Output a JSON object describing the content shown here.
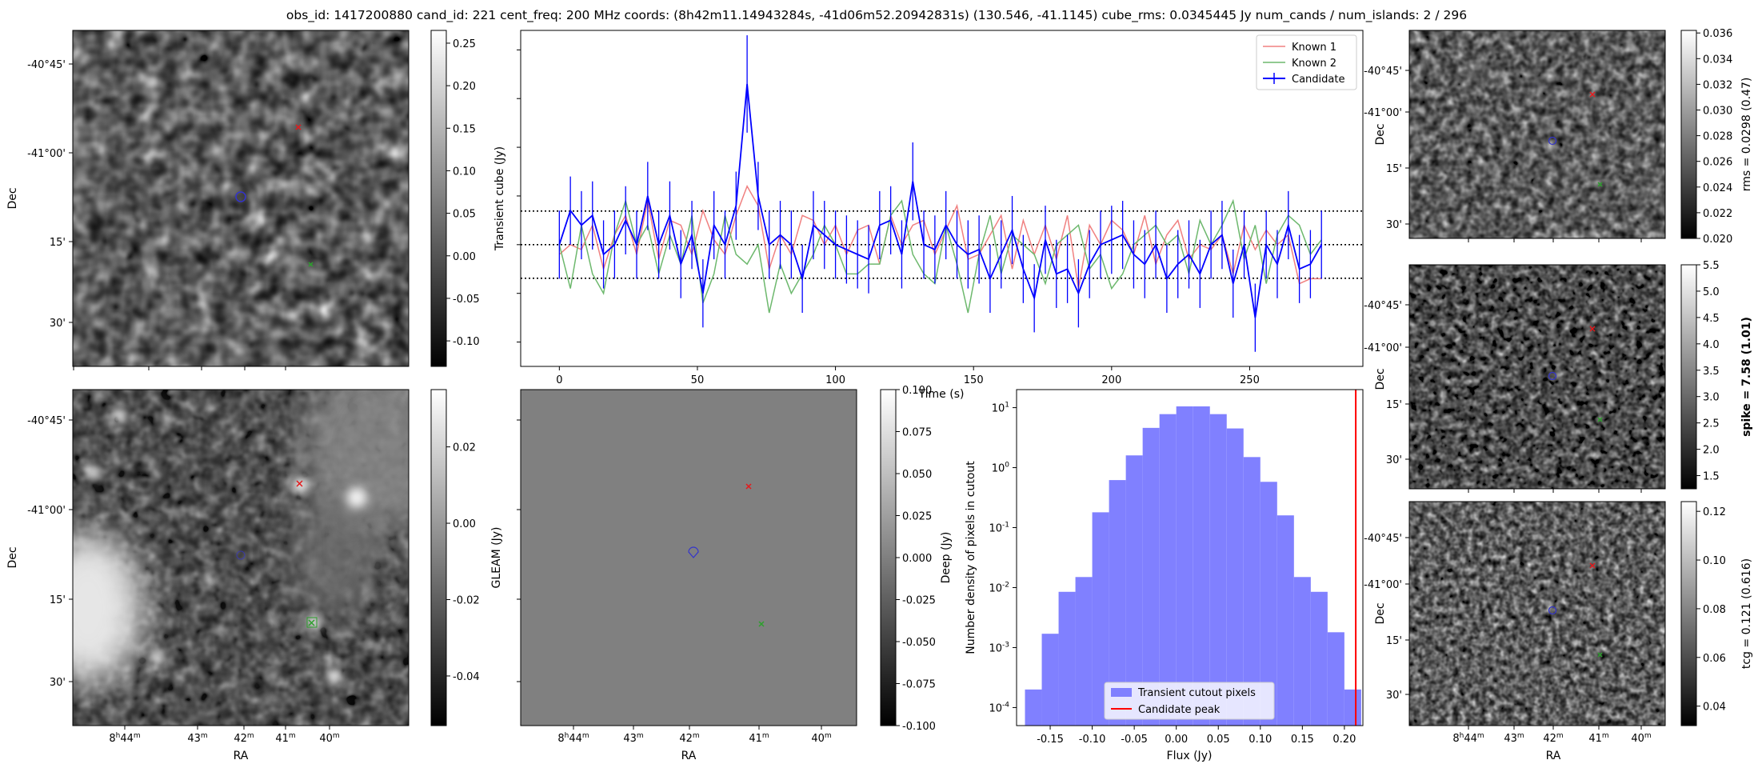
{
  "figure": {
    "title": "obs_id: 1417200880 cand_id: 221 cent_freq: 200 MHz coords: (8h42m11.14943284s, -41d06m52.20942831s) (130.546, -41.1145) cube_rms: 0.0345445 Jy num_cands / num_islands: 2 / 296"
  },
  "images": {
    "dec_tick_labels": [
      "-40°45'",
      "-41°00'",
      "15'",
      "30'"
    ],
    "ra_tick_labels": [
      "8h44m",
      "43m",
      "42m",
      "41m",
      "40m"
    ],
    "xlabel": "RA",
    "ylabel": "Dec",
    "markers": [
      {
        "name": "Known 1",
        "color": "#e41a1c",
        "symbol": "x"
      },
      {
        "name": "Known 2",
        "color": "#2ca02c",
        "symbol": "x"
      },
      {
        "name": "Candidate",
        "color": "#3333cc",
        "symbol": "circle"
      }
    ]
  },
  "colorbars": {
    "transient": {
      "ticks": [
        "0.25",
        "0.20",
        "0.15",
        "0.10",
        "0.05",
        "0.00",
        "-0.05",
        "-0.10"
      ],
      "range": [
        -0.13,
        0.265
      ]
    },
    "gleam": {
      "label": "GLEAM (Jy)",
      "ticks": [
        "0.02",
        "0.00",
        "-0.02",
        "-0.04"
      ],
      "range": [
        -0.053,
        0.035
      ]
    },
    "deep": {
      "label": "Deep (Jy)",
      "ticks": [
        "0.100",
        "0.075",
        "0.050",
        "0.025",
        "0.000",
        "-0.025",
        "-0.050",
        "-0.075",
        "-0.100"
      ],
      "range": [
        -0.1,
        0.1
      ]
    },
    "rms": {
      "label": "rms = 0.0298 (0.47)",
      "ticks": [
        "0.036",
        "0.034",
        "0.032",
        "0.030",
        "0.028",
        "0.026",
        "0.024",
        "0.022",
        "0.020"
      ],
      "range": [
        0.02,
        0.0362
      ]
    },
    "spike": {
      "label": "spike = 7.58 (1.01)",
      "ticks": [
        "5.5",
        "5.0",
        "4.5",
        "4.0",
        "3.5",
        "3.0",
        "2.5",
        "2.0",
        "1.5"
      ],
      "range": [
        1.25,
        5.5
      ]
    },
    "tcg": {
      "label": "tcg = 0.121 (0.616)",
      "ticks": [
        "0.12",
        "0.10",
        "0.08",
        "0.06",
        "0.04"
      ],
      "range": [
        0.032,
        0.124
      ]
    }
  },
  "chart_data": [
    {
      "type": "line",
      "ylabel": "Transient cube (Jy)",
      "xlabel": "Time (s)",
      "xlim": [
        -14,
        291
      ],
      "ylim": [
        -0.125,
        0.22
      ],
      "x_ticks": [
        0,
        50,
        100,
        150,
        200,
        250
      ],
      "legend_position": "top-right",
      "hlines": [
        0.0345,
        0.0,
        -0.0345
      ],
      "series": [
        {
          "name": "Known 1",
          "color": "#f08080",
          "x": [
            0,
            4,
            8,
            12,
            16,
            20,
            24,
            28,
            32,
            36,
            40,
            44,
            48,
            52,
            56,
            60,
            64,
            68,
            72,
            76,
            80,
            84,
            88,
            92,
            96,
            100,
            104,
            108,
            112,
            116,
            120,
            124,
            128,
            132,
            136,
            140,
            144,
            148,
            152,
            156,
            160,
            164,
            168,
            172,
            176,
            180,
            184,
            188,
            192,
            196,
            200,
            204,
            208,
            212,
            216,
            220,
            224,
            228,
            232,
            236,
            240,
            244,
            248,
            252,
            256,
            260,
            264,
            268,
            272,
            276
          ],
          "values": [
            -0.01,
            0.0,
            -0.005,
            0.02,
            -0.025,
            0.01,
            0.03,
            -0.01,
            0.045,
            -0.015,
            0.025,
            0.02,
            -0.01,
            0.035,
            0.005,
            -0.01,
            0.03,
            0.06,
            0.04,
            -0.025,
            0.01,
            -0.01,
            0.03,
            0.025,
            0.0,
            0.02,
            -0.01,
            0.015,
            0.02,
            -0.02,
            0.03,
            0.0,
            0.02,
            0.025,
            -0.01,
            0.015,
            0.04,
            -0.015,
            -0.01,
            0.01,
            0.03,
            -0.025,
            0.025,
            -0.01,
            0.02,
            -0.015,
            0.03,
            -0.045,
            0.02,
            0.0,
            0.025,
            0.015,
            -0.01,
            0.03,
            -0.02,
            0.01,
            0.025,
            -0.015,
            0.0,
            -0.005,
            0.01,
            -0.03,
            0.02,
            -0.005,
            0.015,
            0.0,
            0.01,
            -0.04,
            -0.035,
            -0.035
          ]
        },
        {
          "name": "Known 2",
          "color": "#6db86d",
          "x": [
            0,
            4,
            8,
            12,
            16,
            20,
            24,
            28,
            32,
            36,
            40,
            44,
            48,
            52,
            56,
            60,
            64,
            68,
            72,
            76,
            80,
            84,
            88,
            92,
            96,
            100,
            104,
            108,
            112,
            116,
            120,
            124,
            128,
            132,
            136,
            140,
            144,
            148,
            152,
            156,
            160,
            164,
            168,
            172,
            176,
            180,
            184,
            188,
            192,
            196,
            200,
            204,
            208,
            212,
            216,
            220,
            224,
            228,
            232,
            236,
            240,
            244,
            248,
            252,
            256,
            260,
            264,
            268,
            272,
            276
          ],
          "values": [
            0.0,
            -0.045,
            0.02,
            -0.03,
            -0.05,
            0.01,
            0.045,
            0.0,
            0.02,
            -0.03,
            0.01,
            -0.02,
            0.03,
            -0.06,
            -0.03,
            0.03,
            -0.01,
            -0.02,
            0.0,
            -0.07,
            -0.02,
            -0.05,
            -0.03,
            -0.01,
            0.02,
            0.0,
            -0.03,
            -0.03,
            -0.02,
            -0.02,
            0.03,
            0.045,
            -0.01,
            -0.03,
            -0.04,
            0.02,
            -0.02,
            -0.07,
            -0.01,
            0.03,
            -0.03,
            0.01,
            0.0,
            -0.01,
            -0.04,
            0.0,
            0.01,
            0.02,
            -0.025,
            -0.01,
            -0.045,
            -0.03,
            0.0,
            0.01,
            0.02,
            0.0,
            0.01,
            -0.03,
            0.025,
            0.0,
            0.02,
            0.045,
            -0.015,
            0.02,
            -0.04,
            0.01,
            0.03,
            0.02,
            -0.01,
            0.005
          ]
        },
        {
          "name": "Candidate",
          "color": "#0000ff",
          "x": [
            0,
            4,
            8,
            12,
            16,
            20,
            24,
            28,
            32,
            36,
            40,
            44,
            48,
            52,
            56,
            60,
            64,
            68,
            72,
            76,
            80,
            84,
            88,
            92,
            96,
            100,
            104,
            108,
            112,
            116,
            120,
            124,
            128,
            132,
            136,
            140,
            144,
            148,
            152,
            156,
            160,
            164,
            168,
            172,
            176,
            180,
            184,
            188,
            192,
            196,
            200,
            204,
            208,
            212,
            216,
            220,
            224,
            228,
            232,
            236,
            240,
            244,
            248,
            252,
            256,
            260,
            264,
            268,
            272,
            276
          ],
          "values": [
            0.0,
            0.035,
            0.02,
            0.03,
            -0.01,
            0.0,
            0.025,
            0.0,
            0.05,
            0.0,
            0.03,
            -0.02,
            0.01,
            -0.05,
            0.02,
            0.0,
            0.04,
            0.165,
            0.05,
            0.0,
            0.01,
            0.0,
            -0.035,
            0.02,
            0.01,
            0.0,
            -0.005,
            -0.01,
            -0.015,
            0.02,
            0.025,
            -0.01,
            0.065,
            0.0,
            -0.005,
            0.02,
            0.0,
            -0.01,
            -0.005,
            -0.035,
            -0.01,
            0.015,
            -0.025,
            -0.055,
            0.005,
            -0.03,
            -0.025,
            -0.05,
            -0.02,
            0.0,
            0.005,
            0.01,
            -0.01,
            -0.02,
            0.0,
            -0.035,
            -0.02,
            -0.01,
            -0.03,
            0.0,
            0.01,
            -0.04,
            0.0,
            -0.075,
            0.0,
            -0.02,
            0.02,
            -0.025,
            -0.02,
            0.0
          ],
          "errors": [
            0.035,
            0.035,
            0.035,
            0.035,
            0.035,
            0.035,
            0.035,
            0.035,
            0.035,
            0.035,
            0.035,
            0.035,
            0.035,
            0.035,
            0.035,
            0.035,
            0.035,
            0.05,
            0.035,
            0.035,
            0.035,
            0.035,
            0.035,
            0.035,
            0.035,
            0.035,
            0.035,
            0.035,
            0.035,
            0.035,
            0.035,
            0.035,
            0.04,
            0.035,
            0.035,
            0.035,
            0.035,
            0.035,
            0.035,
            0.035,
            0.035,
            0.035,
            0.035,
            0.035,
            0.035,
            0.035,
            0.035,
            0.035,
            0.035,
            0.035,
            0.035,
            0.035,
            0.035,
            0.035,
            0.035,
            0.035,
            0.035,
            0.035,
            0.035,
            0.035,
            0.035,
            0.035,
            0.035,
            0.035,
            0.035,
            0.035,
            0.035,
            0.035,
            0.035,
            0.035
          ]
        }
      ]
    },
    {
      "type": "bar",
      "xlabel": "Flux (Jy)",
      "ylabel": "Number density of pixels in cutout",
      "yscale": "log",
      "ylim": [
        5e-05,
        20
      ],
      "xlim": [
        -0.19,
        0.222
      ],
      "x_tick_labels": [
        "-0.15",
        "-0.10",
        "-0.05",
        "0.00",
        "0.05",
        "0.10",
        "0.15",
        "0.20"
      ],
      "y_tick_labels": [
        "10^-4",
        "10^-3",
        "10^-2",
        "10^-1",
        "10^0",
        "10^1"
      ],
      "bin_edges": [
        -0.18,
        -0.16,
        -0.14,
        -0.12,
        -0.1,
        -0.08,
        -0.06,
        -0.04,
        -0.02,
        0.0,
        0.02,
        0.04,
        0.06,
        0.08,
        0.1,
        0.12,
        0.14,
        0.16,
        0.18,
        0.2
      ],
      "values": [
        0.0002,
        0.0017,
        0.0085,
        0.015,
        0.18,
        0.62,
        1.6,
        4.6,
        7.8,
        10.5,
        10.5,
        7.8,
        4.5,
        1.5,
        0.58,
        0.16,
        0.015,
        0.0085,
        0.0018,
        0.0002
      ],
      "series": [
        {
          "name": "Transient cutout pixels",
          "color": "#8080ff"
        },
        {
          "name": "Candidate peak",
          "color": "#ff0000",
          "x": 0.2135
        }
      ],
      "legend_position": "lower-center"
    }
  ]
}
